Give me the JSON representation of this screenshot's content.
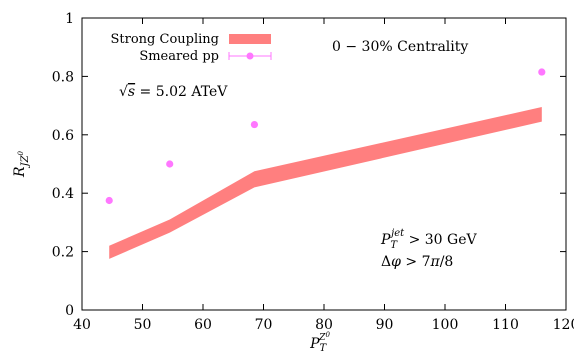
{
  "chart_data": {
    "type": "line",
    "xlabel": "P_T^{Z^0}",
    "ylabel": "R_{JZ^0}",
    "xlim": [
      40,
      120
    ],
    "ylim": [
      0,
      1
    ],
    "x_ticks": [
      40,
      50,
      60,
      70,
      80,
      90,
      100,
      110,
      120
    ],
    "y_ticks": [
      0,
      0.2,
      0.4,
      0.6,
      0.8,
      1
    ],
    "x_tick_labels": [
      "40",
      "50",
      "60",
      "70",
      "80",
      "90",
      "100",
      "110",
      "120"
    ],
    "y_tick_labels": [
      "0",
      "0.2",
      "0.4",
      "0.6",
      "0.8",
      "1"
    ],
    "grid": false,
    "legend_position": "top-left",
    "series": [
      {
        "name": "Strong Coupling",
        "style": "band",
        "color": "#ff7f7f",
        "x": [
          44.5,
          54.5,
          68.5,
          116
        ],
        "y_low": [
          0.175,
          0.265,
          0.42,
          0.645
        ],
        "y_high": [
          0.22,
          0.31,
          0.475,
          0.695
        ]
      },
      {
        "name": "Smeared pp",
        "style": "points",
        "color": "#ff77ff",
        "x": [
          44.5,
          54.5,
          68.5,
          116
        ],
        "y": [
          0.375,
          0.5,
          0.635,
          0.815
        ]
      }
    ],
    "annotations": {
      "centrality": "0 − 30% Centrality",
      "energy": "√s = 5.02 ATeV",
      "cut_pt_jet": "P_T^jet > 30 GeV",
      "cut_dphi": "Δφ > 7π/8"
    }
  }
}
